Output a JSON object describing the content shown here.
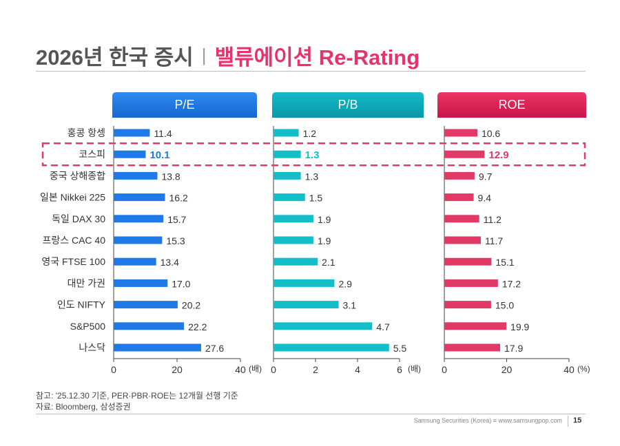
{
  "page": {
    "title_main": "2026년 한국 증시",
    "title_sep": "|",
    "title_accent": "밸류에이션 Re-Rating",
    "note1": "참고: '25.12.30 기준, PER·PBR·ROE는 12개월 선행 기준",
    "note2": "자료: Bloomberg, 삼성증권",
    "footer": "Samsung Securities (Korea) ≡ www.samsungpop.com",
    "page_number": "15"
  },
  "colors": {
    "pe": "#1f7ae8",
    "pb": "#13bec9",
    "roe": "#e23a66",
    "highlight_box": "#e23a66"
  },
  "chart_data": [
    {
      "type": "bar",
      "title": "P/E",
      "unit_label": "(배)",
      "categories": [
        "홍콩 항셍",
        "코스피",
        "중국 상해종합",
        "일본 Nikkei 225",
        "독일 DAX 30",
        "프랑스 CAC 40",
        "영국 FTSE 100",
        "대만 가권",
        "인도 NIFTY",
        "S&P500",
        "나스닥"
      ],
      "values": [
        11.4,
        10.1,
        13.8,
        16.2,
        15.7,
        15.3,
        13.4,
        17.0,
        20.2,
        22.2,
        27.6
      ],
      "labels": [
        "11.4",
        "10.1",
        "13.8",
        "16.2",
        "15.7",
        "15.3",
        "13.4",
        "17.0",
        "20.2",
        "22.2",
        "27.6"
      ],
      "xlim": [
        0,
        40
      ],
      "ticks": [
        "0",
        "20",
        "40"
      ],
      "highlight": "코스피"
    },
    {
      "type": "bar",
      "title": "P/B",
      "unit_label": "(배)",
      "categories": [
        "홍콩 항셍",
        "코스피",
        "중국 상해종합",
        "일본 Nikkei 225",
        "독일 DAX 30",
        "프랑스 CAC 40",
        "영국 FTSE 100",
        "대만 가권",
        "인도 NIFTY",
        "S&P500",
        "나스닥"
      ],
      "values": [
        1.2,
        1.3,
        1.3,
        1.5,
        1.9,
        1.9,
        2.1,
        2.9,
        3.1,
        4.7,
        5.5
      ],
      "labels": [
        "1.2",
        "1.3",
        "1.3",
        "1.5",
        "1.9",
        "1.9",
        "2.1",
        "2.9",
        "3.1",
        "4.7",
        "5.5"
      ],
      "xlim": [
        0,
        6
      ],
      "ticks": [
        "0",
        "2",
        "4",
        "6"
      ],
      "highlight": "코스피"
    },
    {
      "type": "bar",
      "title": "ROE",
      "unit_label": "(%)",
      "categories": [
        "홍콩 항셍",
        "코스피",
        "중국 상해종합",
        "일본 Nikkei 225",
        "독일 DAX 30",
        "프랑스 CAC 40",
        "영국 FTSE 100",
        "대만 가권",
        "인도 NIFTY",
        "S&P500",
        "나스닥"
      ],
      "values": [
        10.6,
        12.9,
        9.7,
        9.4,
        11.2,
        11.7,
        15.1,
        17.2,
        15.0,
        19.9,
        17.9
      ],
      "labels": [
        "10.6",
        "12.9",
        "9.7",
        "9.4",
        "11.2",
        "11.7",
        "15.1",
        "17.2",
        "15.0",
        "19.9",
        "17.9"
      ],
      "xlim": [
        0,
        40
      ],
      "ticks": [
        "0",
        "20",
        "40"
      ],
      "highlight": "코스피"
    }
  ]
}
